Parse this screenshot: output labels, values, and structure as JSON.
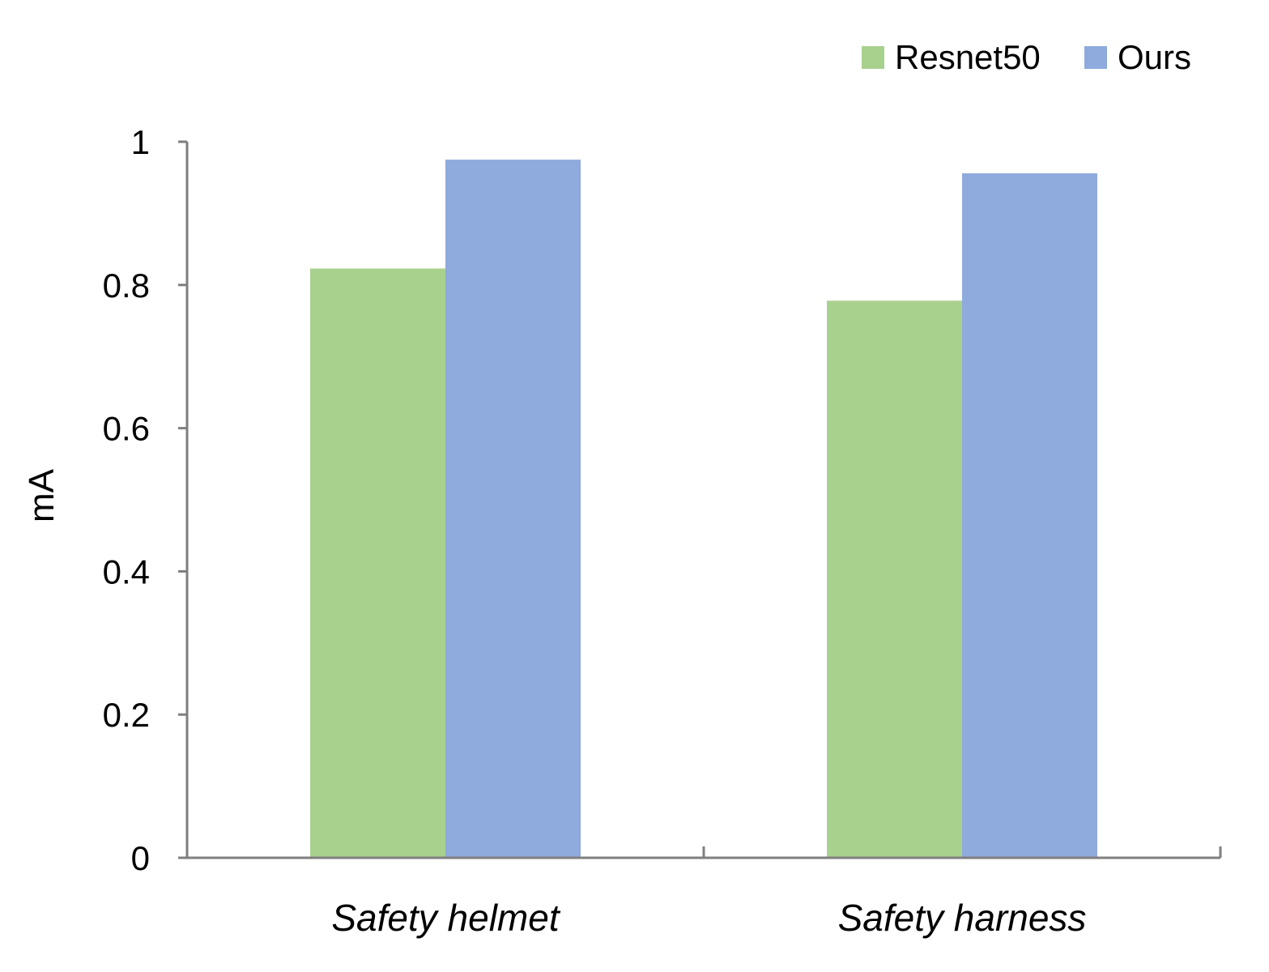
{
  "chart_data": {
    "type": "bar",
    "categories": [
      "Safety helmet",
      "Safety harness"
    ],
    "series": [
      {
        "name": "Resnet50",
        "values": [
          0.823,
          0.778
        ],
        "color": "#a9d18e"
      },
      {
        "name": "Ours",
        "values": [
          0.975,
          0.956
        ],
        "color": "#8faadc"
      }
    ],
    "xlabel": "",
    "ylabel": "mA",
    "ylim": [
      0,
      1
    ],
    "yticks": [
      0,
      0.2,
      0.4,
      0.6,
      0.8,
      1
    ],
    "ytick_labels": [
      "0",
      "0.2",
      "0.4",
      "0.6",
      "0.8",
      "1"
    ],
    "grid": false,
    "legend_position": "top-right",
    "axis_color": "#7f7f7f"
  }
}
